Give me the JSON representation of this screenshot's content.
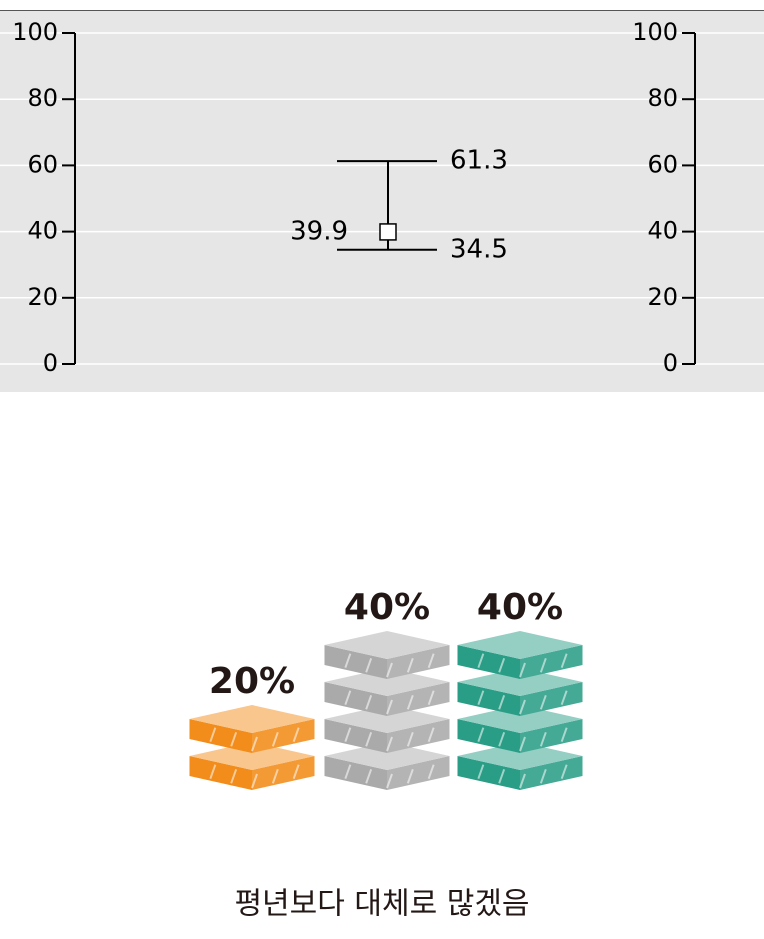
{
  "chart_data": [
    {
      "type": "errorbar",
      "value": 39.9,
      "low": 34.5,
      "high": 61.3,
      "ylim": [
        0,
        100
      ],
      "yticks": [
        0,
        20,
        40,
        60,
        80,
        100
      ],
      "y2lim": [
        0,
        100
      ],
      "y2ticks": [
        0,
        20,
        40,
        60,
        80,
        100
      ],
      "grid": true
    },
    {
      "type": "blocks",
      "values": [
        20,
        40,
        40
      ],
      "value_labels": [
        "20%",
        "40%",
        "40%"
      ],
      "colors": [
        "#f28c1a",
        "#aaaaaa",
        "#2a9d86"
      ],
      "caption": "평년보다 대체로 많겠음"
    }
  ]
}
